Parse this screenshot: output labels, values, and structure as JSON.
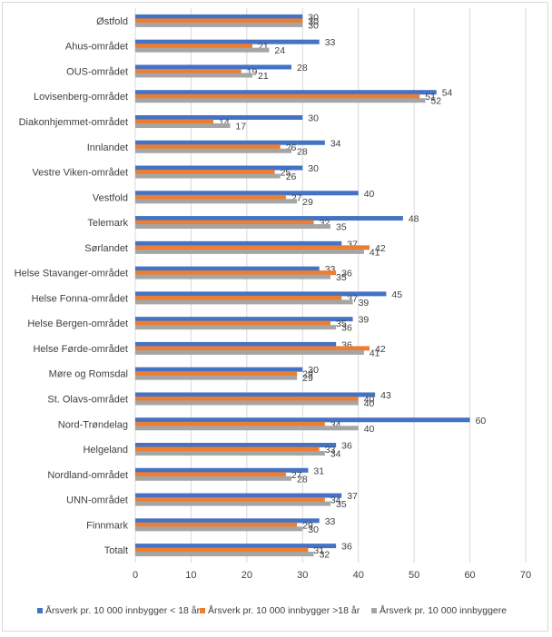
{
  "chart_data": {
    "type": "bar",
    "orientation": "horizontal",
    "categories": [
      "Østfold",
      "Ahus-området",
      "OUS-området",
      "Lovisenberg-området",
      "Diakonhjemmet-området",
      "Innlandet",
      "Vestre Viken-området",
      "Vestfold",
      "Telemark",
      "Sørlandet",
      "Helse Stavanger-området",
      "Helse Fonna-området",
      "Helse Bergen-området",
      "Helse Førde-området",
      "Møre og Romsdal",
      "St. Olavs-området",
      "Nord-Trøndelag",
      "Helgeland",
      "Nordland-området",
      "UNN-området",
      "Finnmark",
      "Totalt"
    ],
    "series": [
      {
        "name": "Årsverk pr. 10 000 innbygger < 18 år",
        "color": "#4472c4",
        "values": [
          30,
          33,
          28,
          54,
          30,
          34,
          30,
          40,
          48,
          37,
          33,
          45,
          39,
          36,
          30,
          43,
          60,
          36,
          31,
          37,
          33,
          36
        ]
      },
      {
        "name": "Årsverk pr. 10 000 innbygger >18 år",
        "color": "#ed7d31",
        "values": [
          30,
          21,
          19,
          51,
          14,
          26,
          25,
          27,
          32,
          42,
          36,
          37,
          35,
          42,
          29,
          40,
          34,
          33,
          27,
          34,
          29,
          31
        ]
      },
      {
        "name": "Årsverk pr. 10 000 innbyggere",
        "color": "#a5a5a5",
        "values": [
          30,
          24,
          21,
          52,
          17,
          28,
          26,
          29,
          35,
          41,
          35,
          39,
          36,
          41,
          29,
          40,
          40,
          34,
          28,
          35,
          30,
          32
        ]
      }
    ],
    "xlim": [
      0,
      70
    ],
    "xticks": [
      0,
      10,
      20,
      30,
      40,
      50,
      60,
      70
    ],
    "grid": true,
    "legend_position": "bottom"
  }
}
